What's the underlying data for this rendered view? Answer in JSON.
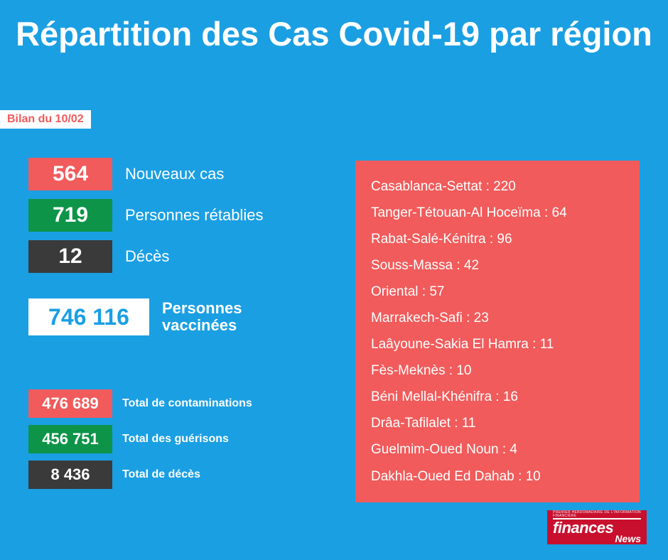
{
  "colors": {
    "bg": "#1a9fe3",
    "white": "#ffffff",
    "red": "#f15b5b",
    "green": "#0d9448",
    "dark": "#3a3a3a",
    "logo_bg": "#c8102e"
  },
  "title": "Répartition des Cas Covid-19 par région",
  "date_tag": "Bilan du 10/02",
  "stats": [
    {
      "value": "564",
      "label": "Nouveaux cas",
      "bg": "red"
    },
    {
      "value": "719",
      "label": "Personnes rétablies",
      "bg": "green"
    },
    {
      "value": "12",
      "label": "Décès",
      "bg": "dark"
    }
  ],
  "vaccinated": {
    "value": "746 116",
    "label": "Personnes\nvaccinées"
  },
  "totals": [
    {
      "value": "476 689",
      "label": "Total de contaminations",
      "bg": "red"
    },
    {
      "value": "456 751",
      "label": "Total des guérisons",
      "bg": "green"
    },
    {
      "value": "8 436",
      "label": "Total de décès",
      "bg": "dark"
    }
  ],
  "regions": [
    {
      "name": "Casablanca-Settat",
      "value": 220
    },
    {
      "name": "Tanger-Tétouan-Al Hoceïma",
      "value": 64
    },
    {
      "name": "Rabat-Salé-Kénitra",
      "value": 96
    },
    {
      "name": "Souss-Massa",
      "value": 42
    },
    {
      "name": "Oriental",
      "value": 57
    },
    {
      "name": "Marrakech-Safi",
      "value": 23
    },
    {
      "name": "Laâyoune-Sakia El Hamra",
      "value": 11
    },
    {
      "name": "Fès-Meknès",
      "value": 10
    },
    {
      "name": "Béni Mellal-Khénifra",
      "value": 16
    },
    {
      "name": "Drâa-Tafilalet",
      "value": 11
    },
    {
      "name": "Guelmim-Oued Noun",
      "value": 4
    },
    {
      "name": "Dakhla-Oued Ed Dahab",
      "value": 10
    }
  ],
  "logo": {
    "line1": "finances",
    "line2": "News",
    "tagline": "PREMIER HEBDOMADAIRE DE L'INFORMATION FINANCIÈRE"
  },
  "layout": {
    "stat_tops": [
      222,
      280,
      338
    ],
    "total_tops": [
      548,
      598,
      648
    ]
  }
}
